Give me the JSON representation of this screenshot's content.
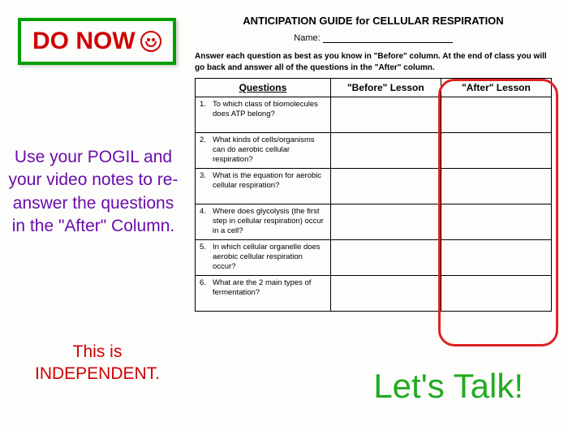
{
  "do_now": {
    "label": "DO NOW"
  },
  "pogil": "Use your POGIL and your video notes to re-answer the questions in the \"After\" Column.",
  "independent": "This is INDEPENDENT.",
  "lets_talk": "Let's Talk!",
  "worksheet": {
    "title": "ANTICIPATION GUIDE for CELLULAR RESPIRATION",
    "name_label": "Name:",
    "instructions": "Answer each question as best as you know in \"Before\" column.  At the end of class you will go back and answer all of the questions in the \"After\" column.",
    "headers": {
      "q": "Questions",
      "before": "\"Before\" Lesson",
      "after": "\"After\" Lesson"
    },
    "rows": [
      {
        "n": "1.",
        "q": "To which class of biomolecules does ATP belong?"
      },
      {
        "n": "2.",
        "q": "What kinds of cells/organisms can do aerobic cellular respiration?"
      },
      {
        "n": "3.",
        "q": "What is the equation for aerobic cellular respiration?"
      },
      {
        "n": "4.",
        "q": "Where does glycolysis (the first step in cellular respiration) occur in a cell?"
      },
      {
        "n": "5.",
        "q": "In which cellular organelle does aerobic cellular respiration occur?"
      },
      {
        "n": "6.",
        "q": "What are the 2 main types of fermentation?"
      }
    ]
  },
  "colors": {
    "green_border": "#00a000",
    "red_text": "#d00000",
    "purple_text": "#6a0dad",
    "green_script": "#22aa22",
    "ring": "#dd2222"
  }
}
